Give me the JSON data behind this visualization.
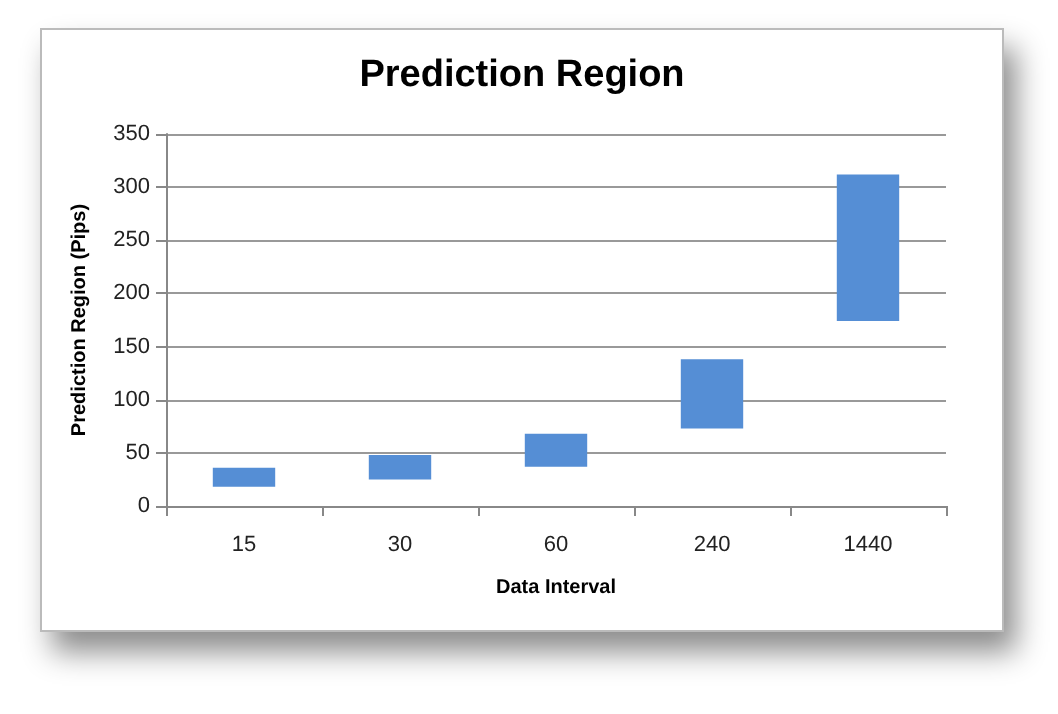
{
  "chart_data": {
    "type": "bar",
    "title": "Prediction Region",
    "xlabel": "Data Interval",
    "ylabel": "Prediction Region (Pips)",
    "categories": [
      "15",
      "30",
      "60",
      "240",
      "1440"
    ],
    "base": [
      18,
      25,
      37,
      73,
      174
    ],
    "values": [
      18,
      23,
      31,
      65,
      138
    ],
    "color": "#558ed5",
    "ylim": [
      0,
      350
    ],
    "yticks": [
      0,
      50,
      100,
      150,
      200,
      250,
      300,
      350
    ],
    "grid": "y"
  }
}
